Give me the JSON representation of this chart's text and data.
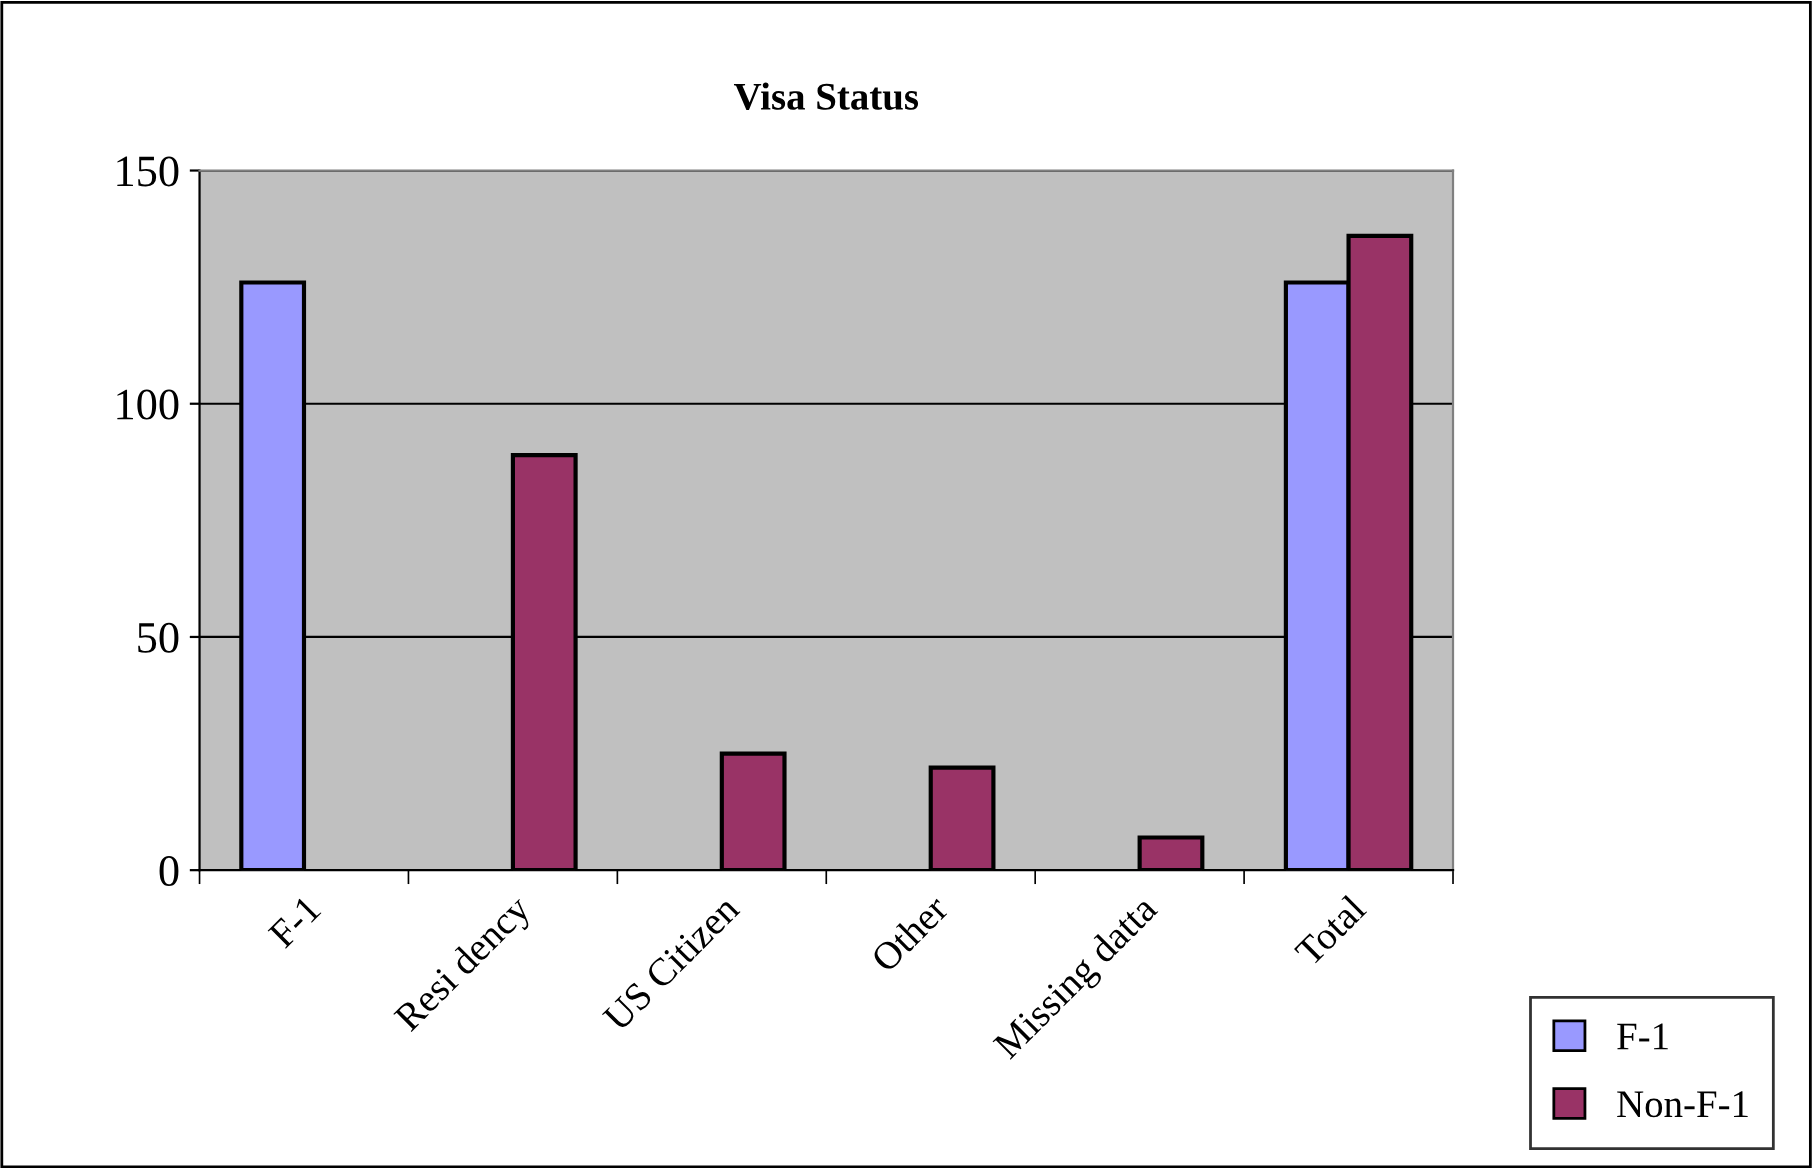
{
  "chart_data": {
    "type": "bar",
    "title": "Visa Status",
    "categories": [
      "F-1",
      "Resi dency",
      "US Citizen",
      "Other",
      "Missing datta",
      "Total"
    ],
    "series": [
      {
        "name": "F-1",
        "color": "#9999ff",
        "values": [
          126,
          null,
          null,
          null,
          null,
          126
        ]
      },
      {
        "name": "Non-F-1",
        "color": "#993366",
        "values": [
          null,
          89,
          25,
          22,
          7,
          136
        ]
      }
    ],
    "ylim": [
      0,
      150
    ],
    "yticks": [
      0,
      50,
      100,
      150
    ],
    "grid": "y",
    "legend": "bottom right"
  }
}
